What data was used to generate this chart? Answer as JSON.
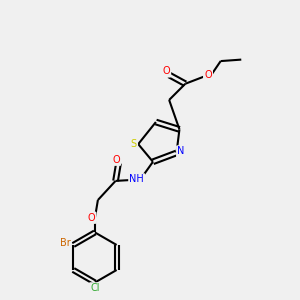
{
  "background_color": "#f0f0f0",
  "bond_color": "#000000",
  "atom_colors": {
    "O": "#ff0000",
    "N": "#0000ff",
    "S": "#cccc00",
    "Br": "#cc6600",
    "Cl": "#33aa33",
    "H": "#008888"
  },
  "figsize": [
    3.0,
    3.0
  ],
  "dpi": 100
}
